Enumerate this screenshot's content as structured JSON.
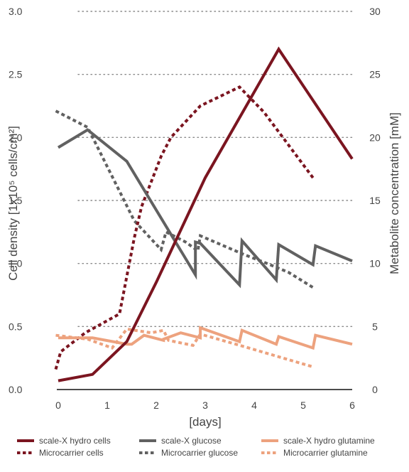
{
  "chart_data": {
    "type": "line",
    "xlabel": "[days]",
    "ylabel_left": "Cell density [1x10⁵ cells/cm²]",
    "ylabel_right": "Metabolite concentration [mM]",
    "xlim": [
      0,
      6
    ],
    "ylim_left": [
      0,
      3.0
    ],
    "ylim_right": [
      0,
      30
    ],
    "x_ticks": [
      "0",
      "1",
      "2",
      "3",
      "4",
      "5",
      "6"
    ],
    "y_left_ticks": [
      "0.0",
      "0.5",
      "1.0",
      "1.5",
      "2.0",
      "2.5",
      "3.0"
    ],
    "y_right_ticks": [
      "0",
      "5",
      "10",
      "15",
      "20",
      "25",
      "30"
    ],
    "grid": "horizontal dotted",
    "legend_position": "bottom",
    "series": [
      {
        "name": "scale-X hydro cells",
        "axis": "left",
        "color": "#7b1520",
        "dash": "solid",
        "x": [
          0,
          0.7,
          1.4,
          2,
          3,
          4.5,
          6
        ],
        "y": [
          0.07,
          0.12,
          0.38,
          0.85,
          1.68,
          2.7,
          1.83
        ]
      },
      {
        "name": "scale-X glucose",
        "axis": "right",
        "color": "#616161",
        "dash": "solid",
        "x": [
          0,
          0.6,
          1.4,
          2.8,
          2.8,
          2.9,
          3.7,
          3.75,
          4.45,
          4.5,
          5.2,
          5.25,
          6
        ],
        "y": [
          19.2,
          20.6,
          18.1,
          9.1,
          11.7,
          11.6,
          8.3,
          11.8,
          8.7,
          11.5,
          9.9,
          11.4,
          10.2
        ]
      },
      {
        "name": "scale-X hydro glutamine",
        "axis": "right",
        "color": "#eda27e",
        "dash": "solid",
        "x": [
          0,
          0.7,
          1.4,
          1.5,
          1.75,
          2.15,
          2.15,
          2.5,
          2.9,
          2.9,
          3.7,
          3.75,
          4.45,
          4.5,
          5.2,
          5.25,
          6
        ],
        "y": [
          4.1,
          4.1,
          3.6,
          3.6,
          4.3,
          3.9,
          4.0,
          4.5,
          4.1,
          4.9,
          3.8,
          4.7,
          3.6,
          4.2,
          3.3,
          4.3,
          3.6
        ]
      },
      {
        "name": "Microcarrier cells",
        "axis": "left",
        "color": "#7b1520",
        "dash": "dotted",
        "x": [
          -0.05,
          0.05,
          0.55,
          1.25,
          1.55,
          1.7,
          2.1,
          2.3,
          2.9,
          3.7,
          4.2,
          5.2
        ],
        "y": [
          0.16,
          0.3,
          0.45,
          0.6,
          1.2,
          1.45,
          1.85,
          2.0,
          2.25,
          2.4,
          2.2,
          1.68
        ]
      },
      {
        "name": "Microcarrier glucose",
        "axis": "right",
        "color": "#616161",
        "dash": "dotted",
        "x": [
          -0.05,
          0.6,
          1.55,
          2.1,
          2.2,
          2.6,
          2.85,
          2.9,
          3.8,
          4.2,
          4.7,
          5.2
        ],
        "y": [
          22.1,
          20.8,
          13.4,
          11.1,
          12.5,
          11.7,
          11.0,
          12.2,
          10.7,
          10.1,
          9.3,
          8.1
        ]
      },
      {
        "name": "Microcarrier glutamine",
        "axis": "right",
        "color": "#eda27e",
        "dash": "dotted",
        "x": [
          -0.05,
          0.6,
          1.1,
          1.4,
          1.9,
          2.15,
          2.25,
          2.75,
          2.9,
          3.8,
          4.5,
          5.2
        ],
        "y": [
          4.3,
          4.0,
          3.3,
          4.8,
          4.5,
          4.7,
          3.9,
          3.5,
          4.4,
          3.4,
          2.6,
          1.8
        ]
      }
    ]
  }
}
